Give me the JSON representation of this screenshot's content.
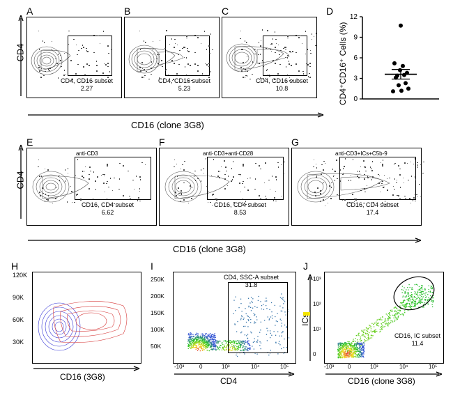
{
  "panels": {
    "A": {
      "letter": "A",
      "gate_label": "CD4, CD16 subset",
      "gate_value": "2.27",
      "type": "contour",
      "color": "#555"
    },
    "B": {
      "letter": "B",
      "gate_label": "CD4, CD16 subset",
      "gate_value": "5.23",
      "type": "contour",
      "color": "#555"
    },
    "C": {
      "letter": "C",
      "gate_label": "CD4, CD16 subset",
      "gate_value": "10.8",
      "type": "contour",
      "color": "#555"
    },
    "D": {
      "letter": "D",
      "y_label": "CD4⁺CD16⁺ Cells (%)",
      "type": "dotplot",
      "ylim": [
        0,
        12
      ],
      "yticks": [
        0,
        3,
        6,
        9,
        12
      ],
      "points": [
        3.1,
        2.3,
        4.2,
        3.5,
        1.1,
        1.5,
        3.4,
        4.8,
        5.2,
        3.8,
        2.0,
        1.2,
        10.7
      ],
      "mean": 3.6,
      "sem": 0.7
    },
    "E": {
      "letter": "E",
      "top_label": "anti-CD3",
      "gate_label": "CD16, CD4 subset",
      "gate_value": "6.62",
      "type": "contour",
      "color": "#555"
    },
    "F": {
      "letter": "F",
      "top_label": "anti-CD3+anti-CD28",
      "gate_label": "CD16, CD4 subset",
      "gate_value": "8.53",
      "type": "contour",
      "color": "#555"
    },
    "G": {
      "letter": "G",
      "top_label": "anti-CD3+ICs+C5b-9",
      "gate_label": "CD16, CD4 subset",
      "gate_value": "17.4",
      "type": "contour",
      "color": "#555"
    },
    "H": {
      "letter": "H",
      "type": "contour2",
      "yticks": [
        "30K",
        "60K",
        "90K",
        "120K"
      ],
      "colors": [
        "#3636d6",
        "#d63636"
      ]
    },
    "I": {
      "letter": "I",
      "gate_label": "CD4, SSC-A subset",
      "gate_value": "31.8",
      "type": "density",
      "yticks": [
        "50K",
        "100K",
        "150K",
        "200K",
        "250K"
      ]
    },
    "J": {
      "letter": "J",
      "gate_label": "CD16, IC subset",
      "gate_value": "11.4",
      "type": "density2"
    }
  },
  "row1_y_label": "CD4",
  "row1_x_label": "CD16 (clone 3G8)",
  "row2_y_label": "CD4",
  "row2_x_label": "CD16 (clone 3G8)",
  "row3": {
    "H_x": "CD16 (3G8)",
    "I_x": "CD4",
    "J_x": "CD16 (clone 3G8)",
    "J_y": "ICs"
  },
  "log_ticks": [
    "-10³",
    "0",
    "10³",
    "10⁴",
    "10⁵"
  ],
  "colors": {
    "axis": "#000000",
    "contour": "#555555",
    "density_low": "#3556d4",
    "density_mid": "#26c51e",
    "density_high": "#f6e11a",
    "density_max": "#e03030"
  }
}
